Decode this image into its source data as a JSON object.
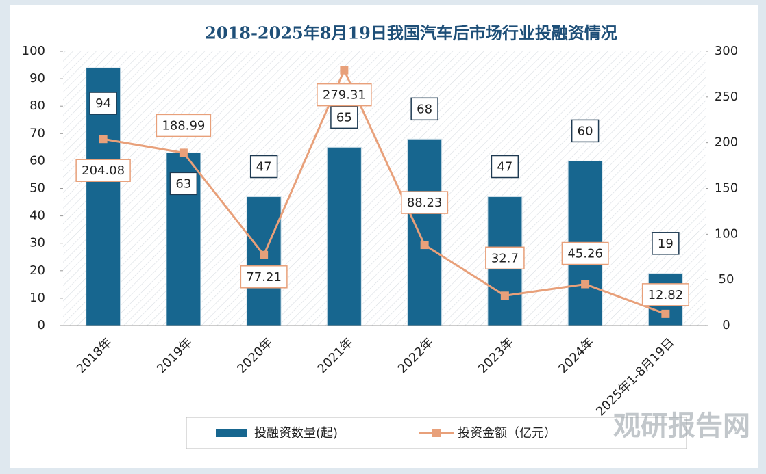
{
  "chart_data": {
    "type": "bar-line",
    "title": "2018-2025年8月19日我国汽车后市场行业投融资情况",
    "categories": [
      "2018年",
      "2019年",
      "2020年",
      "2021年",
      "2022年",
      "2023年",
      "2024年",
      "2025年1-8月19日"
    ],
    "series": [
      {
        "name": "投融资数量(起)",
        "color": "#17668f",
        "type": "bar",
        "values": [
          94,
          63,
          47,
          65,
          68,
          47,
          60,
          19
        ]
      },
      {
        "name": "投资金额（亿元）",
        "color": "#e8a07a",
        "type": "line",
        "axis": "y2",
        "values": [
          204.08,
          188.99,
          77.21,
          279.31,
          88.23,
          32.7,
          45.26,
          12.82
        ]
      }
    ],
    "ylim": [
      0,
      100
    ],
    "yticks": [
      0,
      10,
      20,
      30,
      40,
      50,
      60,
      70,
      80,
      90,
      100
    ],
    "y2lim": [
      0,
      300
    ],
    "y2ticks": [
      0,
      50,
      100,
      150,
      200,
      250,
      300
    ],
    "legend": "bottom",
    "watermark": "观研报告网"
  }
}
